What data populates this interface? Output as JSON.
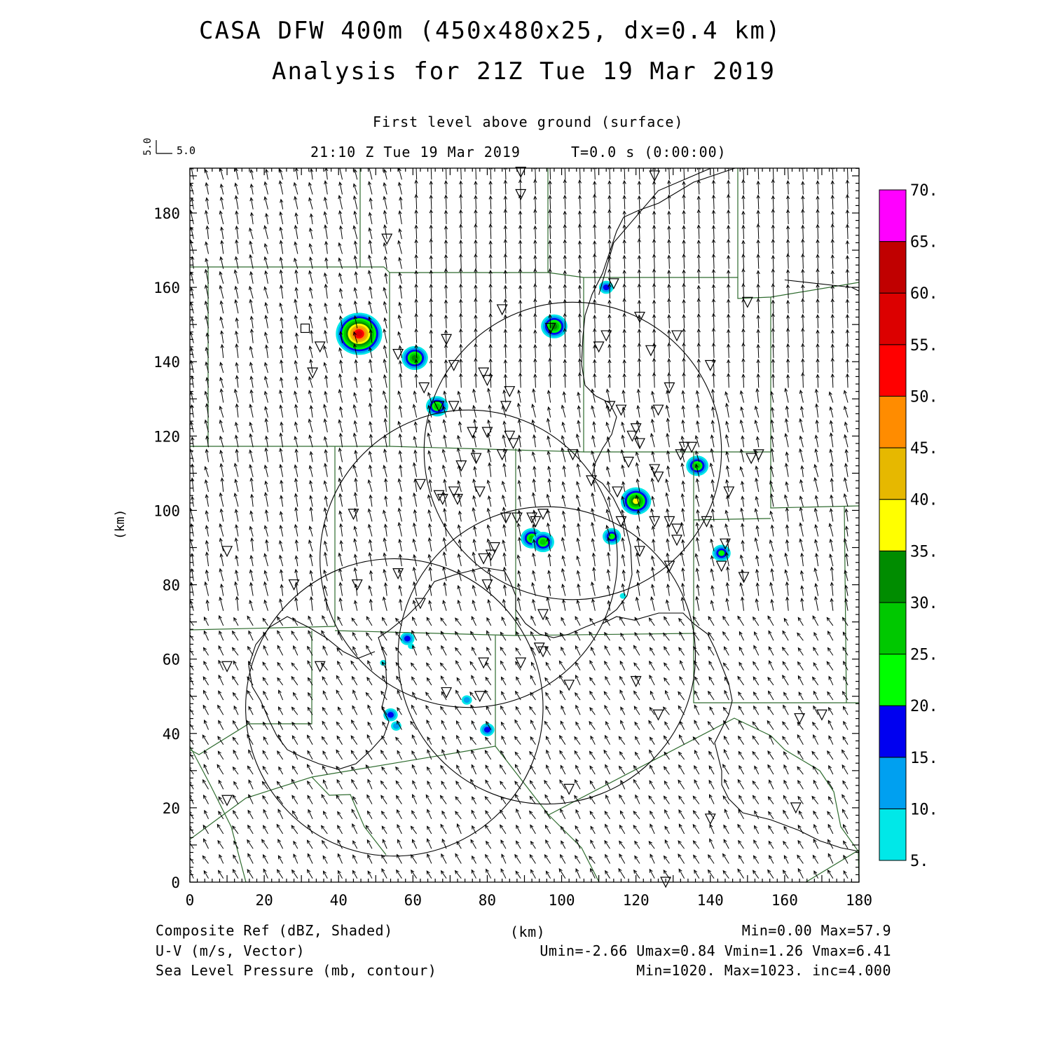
{
  "title": {
    "line1": "CASA DFW 400m (450x480x25, dx=0.4 km)",
    "line2": "Analysis for 21Z Tue 19 Mar 2019"
  },
  "subtitle": {
    "level": "First level above ground (surface)",
    "time": "21:10 Z Tue 19 Mar 2019",
    "forecast": "T=0.0 s (0:00:00)"
  },
  "vector_key": {
    "u_label": "5.0",
    "v_label": "5.0"
  },
  "footer": {
    "left": [
      "Composite Ref (dBZ, Shaded)",
      "U-V (m/s, Vector)",
      "Sea Level Pressure (mb, contour)"
    ],
    "center": "(km)",
    "right": [
      "Min=0.00 Max=57.9",
      "Umin=-2.66 Umax=0.84 Vmin=1.26 Vmax=6.41",
      "Min=1020. Max=1023. inc=4.000"
    ]
  },
  "colors": {
    "county_lines": "#2e6b2e",
    "frame": "#000000"
  },
  "chart_data": {
    "type": "heatmap",
    "xlabel": "",
    "ylabel": "(km)",
    "xlim": [
      0,
      180
    ],
    "ylim": [
      0,
      192
    ],
    "x_ticks": [
      0,
      20,
      40,
      60,
      80,
      100,
      120,
      140,
      160,
      180
    ],
    "y_ticks": [
      0,
      20,
      40,
      60,
      80,
      100,
      120,
      140,
      160,
      180
    ],
    "colorbar": {
      "labels": [
        "5.",
        "10.",
        "15.",
        "20.",
        "25.",
        "30.",
        "35.",
        "40.",
        "45.",
        "50.",
        "55.",
        "60.",
        "65.",
        "70."
      ],
      "colors": [
        "#00e8e8",
        "#00a0f0",
        "#0000f0",
        "#00ff00",
        "#00c800",
        "#008c00",
        "#ffff00",
        "#e6b800",
        "#ff8c00",
        "#ff0000",
        "#dc0000",
        "#c00000",
        "#ff00ff"
      ]
    },
    "wind": {
      "u_mean": -0.9,
      "v_mean": 4.5,
      "umin": -2.66,
      "umax": 0.84,
      "vmin": 1.26,
      "vmax": 6.41
    },
    "radar_rings": [
      {
        "cx": 103,
        "cy": 116,
        "r": 40
      },
      {
        "cx": 75,
        "cy": 87,
        "r": 40
      },
      {
        "cx": 96,
        "cy": 61,
        "r": 40
      },
      {
        "cx": 55,
        "cy": 47,
        "r": 40
      }
    ],
    "echoes": [
      {
        "x": 45.5,
        "y": 147.5,
        "dbz": 57.9
      },
      {
        "x": 60.5,
        "y": 141,
        "dbz": 32
      },
      {
        "x": 98,
        "y": 149.5,
        "dbz": 30
      },
      {
        "x": 66.5,
        "y": 128,
        "dbz": 28
      },
      {
        "x": 112,
        "y": 160,
        "dbz": 15
      },
      {
        "x": 136.5,
        "y": 112,
        "dbz": 25
      },
      {
        "x": 120,
        "y": 102.5,
        "dbz": 38
      },
      {
        "x": 92,
        "y": 92.5,
        "dbz": 26
      },
      {
        "x": 95,
        "y": 91.5,
        "dbz": 28
      },
      {
        "x": 113.5,
        "y": 93,
        "dbz": 22
      },
      {
        "x": 143,
        "y": 88.5,
        "dbz": 20
      },
      {
        "x": 116.5,
        "y": 77,
        "dbz": 7
      },
      {
        "x": 58.5,
        "y": 65.5,
        "dbz": 16
      },
      {
        "x": 59.5,
        "y": 63.5,
        "dbz": 8
      },
      {
        "x": 52,
        "y": 59,
        "dbz": 9
      },
      {
        "x": 74.5,
        "y": 49,
        "dbz": 11
      },
      {
        "x": 54,
        "y": 45,
        "dbz": 15
      },
      {
        "x": 55.5,
        "y": 42,
        "dbz": 14
      },
      {
        "x": 80,
        "y": 41,
        "dbz": 16
      }
    ],
    "pressure_contours": [
      [
        [
          160,
          162
        ],
        [
          178,
          160
        ],
        [
          180,
          159
        ]
      ],
      [
        [
          110,
          158
        ],
        [
          114,
          172
        ],
        [
          126,
          186
        ],
        [
          140,
          192
        ]
      ]
    ],
    "stations": [
      [
        89,
        191
      ],
      [
        89,
        185
      ],
      [
        125,
        190
      ],
      [
        53,
        173
      ],
      [
        114,
        161
      ],
      [
        150,
        156
      ],
      [
        84,
        154
      ],
      [
        121,
        152
      ],
      [
        112,
        147
      ],
      [
        97,
        149
      ],
      [
        131,
        147
      ],
      [
        69,
        146
      ],
      [
        35,
        144
      ],
      [
        124,
        143
      ],
      [
        110,
        144
      ],
      [
        56,
        142
      ],
      [
        71,
        139
      ],
      [
        140,
        139
      ],
      [
        33,
        137
      ],
      [
        79,
        137
      ],
      [
        80,
        135
      ],
      [
        63,
        133
      ],
      [
        86,
        132
      ],
      [
        129,
        133
      ],
      [
        67,
        128
      ],
      [
        71,
        128
      ],
      [
        113,
        128
      ],
      [
        85,
        128
      ],
      [
        116,
        127
      ],
      [
        126,
        127
      ],
      [
        120,
        122
      ],
      [
        76,
        121
      ],
      [
        80,
        121
      ],
      [
        119,
        120
      ],
      [
        86,
        120
      ],
      [
        87,
        118
      ],
      [
        121,
        118
      ],
      [
        135,
        117
      ],
      [
        133,
        117
      ],
      [
        84,
        115
      ],
      [
        132,
        115
      ],
      [
        103,
        115
      ],
      [
        77,
        114
      ],
      [
        153,
        115
      ],
      [
        151,
        114
      ],
      [
        73,
        112
      ],
      [
        118,
        113
      ],
      [
        125,
        111
      ],
      [
        126,
        109
      ],
      [
        108,
        108
      ],
      [
        62,
        107
      ],
      [
        78,
        105
      ],
      [
        71,
        105
      ],
      [
        115,
        105
      ],
      [
        67,
        104
      ],
      [
        68,
        103
      ],
      [
        145,
        105
      ],
      [
        72,
        103
      ],
      [
        44,
        99
      ],
      [
        85,
        98
      ],
      [
        92,
        98
      ],
      [
        88,
        98
      ],
      [
        95,
        99
      ],
      [
        93,
        97
      ],
      [
        125,
        97
      ],
      [
        129,
        97
      ],
      [
        131,
        95
      ],
      [
        139,
        97
      ],
      [
        116,
        97
      ],
      [
        82,
        90
      ],
      [
        81,
        88
      ],
      [
        79,
        87
      ],
      [
        10,
        89
      ],
      [
        121,
        89
      ],
      [
        144,
        91
      ],
      [
        131,
        92
      ],
      [
        129,
        85
      ],
      [
        143,
        85
      ],
      [
        149,
        82
      ],
      [
        28,
        80
      ],
      [
        45,
        80
      ],
      [
        56,
        83
      ],
      [
        80,
        80
      ],
      [
        62,
        75
      ],
      [
        95,
        72
      ],
      [
        35,
        58
      ],
      [
        79,
        59
      ],
      [
        89,
        59
      ],
      [
        94,
        63
      ],
      [
        95,
        62
      ],
      [
        102,
        53
      ],
      [
        120,
        54
      ],
      [
        69,
        51
      ],
      [
        78,
        50
      ],
      [
        10,
        58
      ],
      [
        126,
        45
      ],
      [
        164,
        44
      ],
      [
        170,
        45
      ],
      [
        10,
        22
      ],
      [
        102,
        25
      ],
      [
        163,
        20
      ],
      [
        140,
        17
      ],
      [
        128,
        0
      ]
    ],
    "square_marker": {
      "x": 31,
      "y": 149
    }
  }
}
